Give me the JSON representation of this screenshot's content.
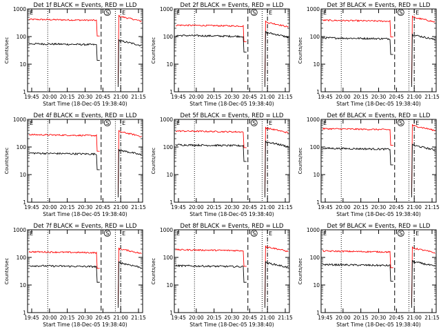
{
  "chart_data": {
    "type": "line",
    "shared": {
      "xlabel": "Start Time (18-Dec-05 19:38:40)",
      "ylabel": "Counts/sec",
      "xtick_labels": [
        "19:45",
        "20:00",
        "20:15",
        "20:30",
        "20:45",
        "21:00",
        "21:15"
      ],
      "ytick_labels": [
        "1",
        "10",
        "100",
        "1000"
      ],
      "yscale": "log",
      "ylim": [
        1,
        1000
      ],
      "markers": [
        "S",
        "E"
      ],
      "colors": {
        "events": "#000000",
        "lld": "#ff0000",
        "axes": "#000000"
      }
    },
    "panels": [
      {
        "title": "Det 1f BLACK = Events, RED = LLD",
        "events_level": 55,
        "lld_level": 420
      },
      {
        "title": "Det 2f BLACK = Events, RED = LLD",
        "events_level": 110,
        "lld_level": 260
      },
      {
        "title": "Det 3f BLACK = Events, RED = LLD",
        "events_level": 90,
        "lld_level": 390
      },
      {
        "title": "Det 4f BLACK = Events, RED = LLD",
        "events_level": 60,
        "lld_level": 280
      },
      {
        "title": "Det 5f BLACK = Events, RED = LLD",
        "events_level": 120,
        "lld_level": 380
      },
      {
        "title": "Det 6f BLACK = Events, RED = LLD",
        "events_level": 90,
        "lld_level": 460
      },
      {
        "title": "Det 7f BLACK = Events, RED = LLD",
        "events_level": 50,
        "lld_level": 160
      },
      {
        "title": "Det 8f BLACK = Events, RED = LLD",
        "events_level": 50,
        "lld_level": 190
      },
      {
        "title": "Det 9f BLACK = Events, RED = LLD",
        "events_level": 55,
        "lld_level": 170
      }
    ]
  }
}
